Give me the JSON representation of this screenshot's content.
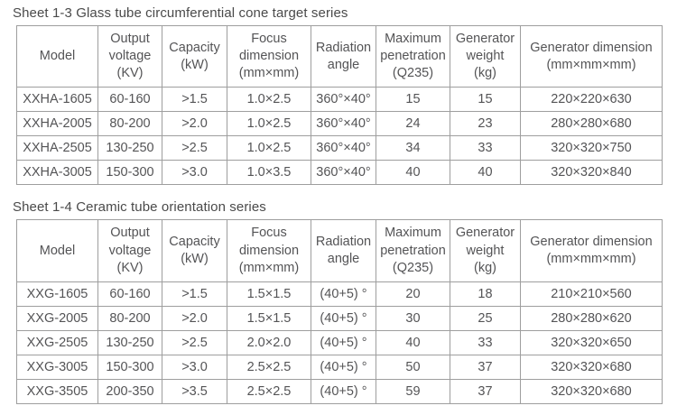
{
  "page": {
    "background_color": "#ffffff",
    "text_color": "#515153",
    "border_color": "#9e9e9e"
  },
  "tables": [
    {
      "title": "Sheet 1-3 Glass tube circumferential cone target series",
      "headers": [
        "Model",
        "Output\nvoltage\n(KV)",
        "Capacity\n(kW)",
        "Focus\ndimension\n(mm×mm)",
        "Radiation\nangle",
        "Maximum\npenetration\n(Q235)",
        "Generator\nweight\n(kg)",
        "Generator dimension\n(mm×mm×mm)"
      ],
      "rows": [
        [
          "XXHA-1605",
          "60-160",
          ">1.5",
          "1.0×2.5",
          "360°×40°",
          "15",
          "15",
          "220×220×630"
        ],
        [
          "XXHA-2005",
          "80-200",
          ">2.0",
          "1.0×2.5",
          "360°×40°",
          "24",
          "23",
          "280×280×680"
        ],
        [
          "XXHA-2505",
          "130-250",
          ">2.5",
          "1.0×2.5",
          "360°×40°",
          "34",
          "33",
          "320×320×750"
        ],
        [
          "XXHA-3005",
          "150-300",
          ">3.0",
          "1.0×3.5",
          "360°×40°",
          "40",
          "40",
          "320×320×840"
        ]
      ]
    },
    {
      "title": "Sheet 1-4 Ceramic tube orientation series",
      "headers": [
        "Model",
        "Output\nvoltage\n(KV)",
        "Capacity\n(kW)",
        "Focus\ndimension\n(mm×mm)",
        "Radiation\nangle",
        "Maximum\npenetration\n(Q235)",
        "Generator\nweight\n(kg)",
        "Generator dimension\n(mm×mm×mm)"
      ],
      "rows": [
        [
          "XXG-1605",
          "60-160",
          ">1.5",
          "1.5×1.5",
          "(40+5) °",
          "20",
          "18",
          "210×210×560"
        ],
        [
          "XXG-2005",
          "80-200",
          ">2.0",
          "1.5×1.5",
          "(40+5) °",
          "30",
          "25",
          "280×280×620"
        ],
        [
          "XXG-2505",
          "130-250",
          ">2.5",
          "2.0×2.0",
          "(40+5) °",
          "40",
          "33",
          "320×320×650"
        ],
        [
          "XXG-3005",
          "150-300",
          ">3.0",
          "2.5×2.5",
          "(40+5) °",
          "50",
          "37",
          "320×320×680"
        ],
        [
          "XXG-3505",
          "200-350",
          ">3.5",
          "2.5×2.5",
          "(40+5) °",
          "59",
          "37",
          "320×320×680"
        ]
      ]
    }
  ]
}
